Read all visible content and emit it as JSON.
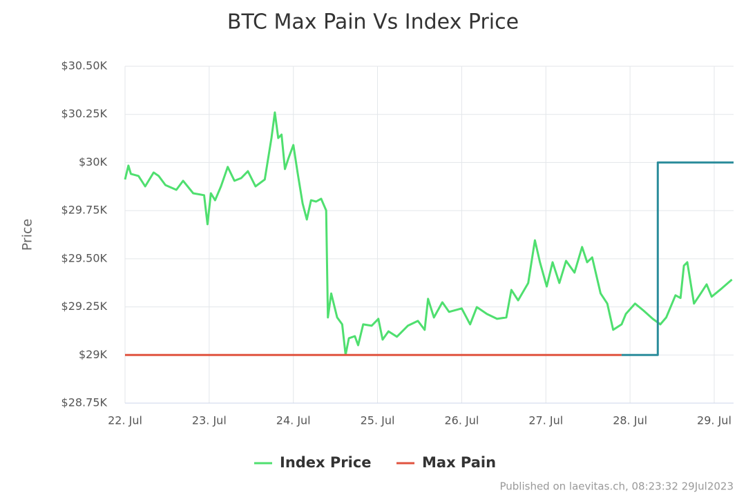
{
  "chart_data": {
    "type": "line",
    "title": "BTC Max Pain Vs Index Price",
    "y_label": "Price",
    "footer": "Published on laevitas.ch, 08:23:32 29Jul2023",
    "xlim": [
      22,
      29.23
    ],
    "xticks": [
      {
        "value": 22,
        "label": "22. Jul"
      },
      {
        "value": 23,
        "label": "23. Jul"
      },
      {
        "value": 24,
        "label": "24. Jul"
      },
      {
        "value": 25,
        "label": "25. Jul"
      },
      {
        "value": 26,
        "label": "26. Jul"
      },
      {
        "value": 27,
        "label": "27. Jul"
      },
      {
        "value": 28,
        "label": "28. Jul"
      },
      {
        "value": 29,
        "label": "29. Jul"
      }
    ],
    "ylim": [
      28750,
      30500
    ],
    "yticks": [
      {
        "value": 28750,
        "label": "$28.75K"
      },
      {
        "value": 29000,
        "label": "$29K"
      },
      {
        "value": 29250,
        "label": "$29.25K"
      },
      {
        "value": 29500,
        "label": "$29.50K"
      },
      {
        "value": 29750,
        "label": "$29.75K"
      },
      {
        "value": 30000,
        "label": "$30K"
      },
      {
        "value": 30250,
        "label": "$30.25K"
      },
      {
        "value": 30500,
        "label": "$30.50K"
      }
    ],
    "grid": true,
    "legend": "bottom",
    "series": [
      {
        "name": "Index Price",
        "color": "#4fdf6f",
        "x": [
          22.0,
          22.04,
          22.07,
          22.16,
          22.24,
          22.34,
          22.4,
          22.48,
          22.61,
          22.69,
          22.81,
          22.94,
          22.98,
          23.02,
          23.07,
          23.14,
          23.22,
          23.3,
          23.38,
          23.46,
          23.55,
          23.66,
          23.74,
          23.78,
          23.82,
          23.86,
          23.9,
          23.94,
          24.0,
          24.05,
          24.11,
          24.16,
          24.21,
          24.27,
          24.33,
          24.39,
          24.41,
          24.45,
          24.52,
          24.58,
          24.62,
          24.66,
          24.73,
          24.77,
          24.83,
          24.93,
          25.01,
          25.06,
          25.13,
          25.23,
          25.36,
          25.48,
          25.56,
          25.6,
          25.67,
          25.77,
          25.85,
          26.0,
          26.1,
          26.18,
          26.3,
          26.42,
          26.53,
          26.59,
          26.67,
          26.79,
          26.87,
          26.93,
          27.01,
          27.08,
          27.16,
          27.24,
          27.34,
          27.43,
          27.49,
          27.55,
          27.65,
          27.73,
          27.8,
          27.9,
          27.95,
          28.06,
          28.16,
          28.27,
          28.36,
          28.43,
          28.54,
          28.6,
          28.64,
          28.68,
          28.76,
          28.84,
          28.91,
          28.97,
          29.09,
          29.21
        ],
        "values": [
          29912,
          29984,
          29941,
          29930,
          29876,
          29948,
          29930,
          29883,
          29858,
          29905,
          29840,
          29830,
          29679,
          29840,
          29804,
          29876,
          29977,
          29905,
          29919,
          29955,
          29876,
          29912,
          30127,
          30260,
          30127,
          30145,
          29966,
          30020,
          30091,
          29948,
          29787,
          29704,
          29804,
          29797,
          29812,
          29751,
          29195,
          29320,
          29195,
          29159,
          29001,
          29087,
          29098,
          29051,
          29159,
          29152,
          29188,
          29080,
          29123,
          29095,
          29152,
          29177,
          29131,
          29292,
          29195,
          29274,
          29224,
          29242,
          29159,
          29249,
          29213,
          29188,
          29195,
          29338,
          29284,
          29374,
          29596,
          29482,
          29356,
          29482,
          29374,
          29489,
          29428,
          29561,
          29482,
          29507,
          29320,
          29267,
          29131,
          29159,
          29213,
          29267,
          29231,
          29188,
          29159,
          29195,
          29310,
          29296,
          29464,
          29482,
          29267,
          29320,
          29367,
          29303,
          29346,
          29392
        ]
      },
      {
        "name": "Max Pain",
        "color": "#e0533f",
        "x": [
          22,
          27.9,
          28.33,
          28.33,
          29.23
        ],
        "values": [
          29000,
          29000,
          29000,
          30000,
          30000
        ],
        "zones": [
          {
            "until": 27.9,
            "color": "#e0533f"
          },
          {
            "color": "#2b8c9b"
          }
        ]
      }
    ]
  }
}
